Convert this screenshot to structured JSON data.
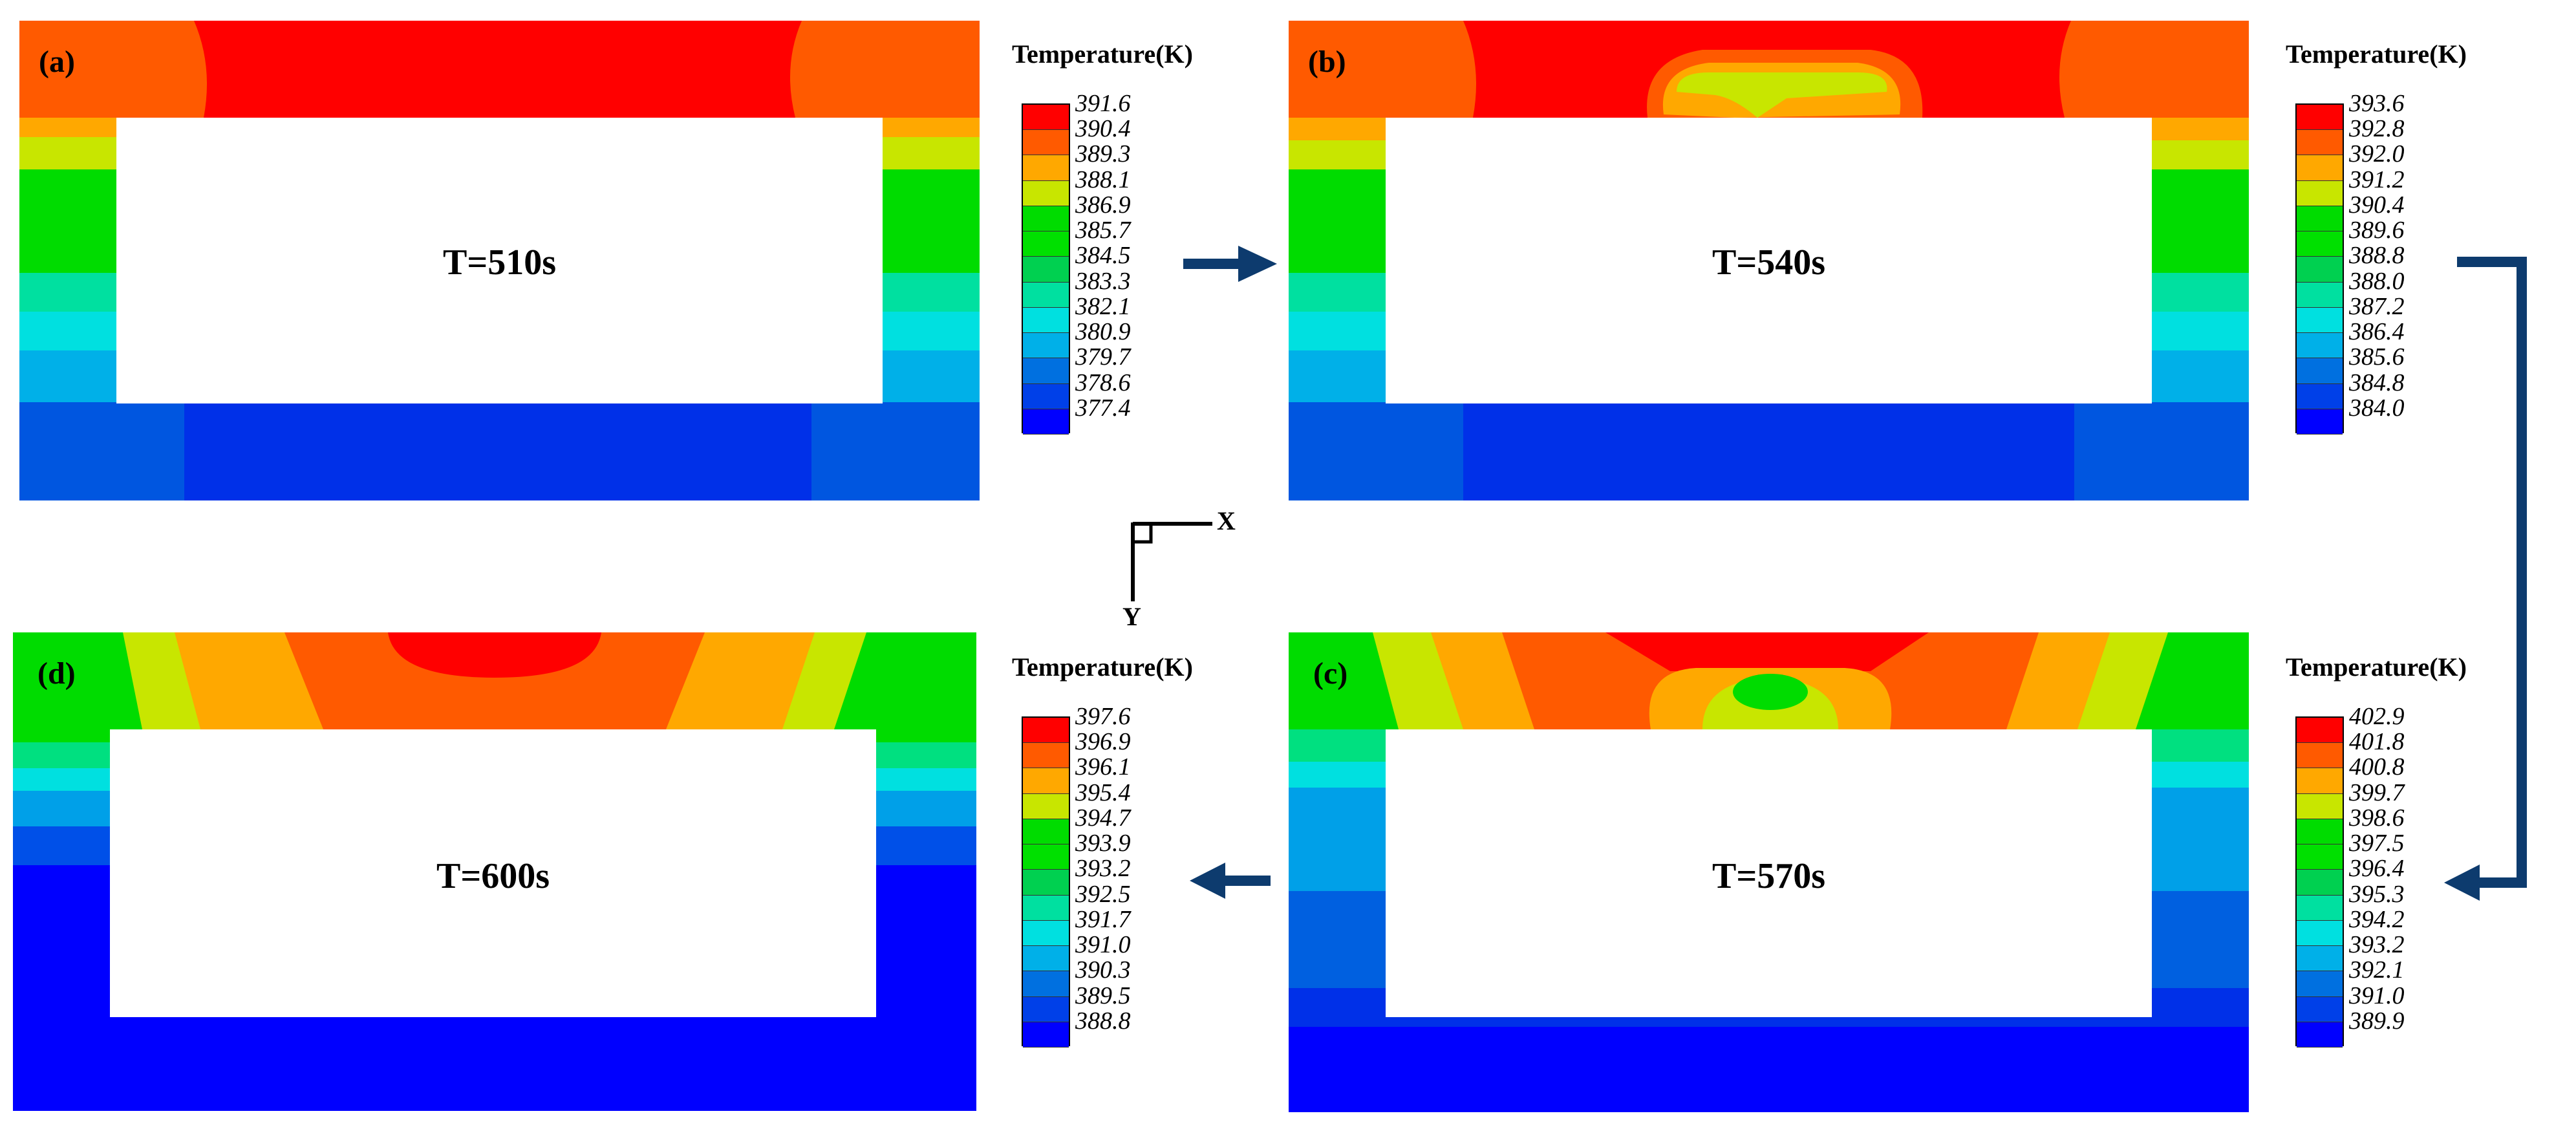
{
  "panels": [
    {
      "id": "a",
      "letter": "(a)",
      "time": "T=510s",
      "legend": {
        "title": "Temperature(K)",
        "values": [
          "391.6",
          "390.4",
          "389.3",
          "388.1",
          "386.9",
          "385.7",
          "384.5",
          "383.3",
          "382.1",
          "380.9",
          "379.7",
          "378.6",
          "377.4"
        ]
      }
    },
    {
      "id": "b",
      "letter": "(b)",
      "time": "T=540s",
      "legend": {
        "title": "Temperature(K)",
        "values": [
          "393.6",
          "392.8",
          "392.0",
          "391.2",
          "390.4",
          "389.6",
          "388.8",
          "388.0",
          "387.2",
          "386.4",
          "385.6",
          "384.8",
          "384.0"
        ]
      }
    },
    {
      "id": "c",
      "letter": "(c)",
      "time": "T=570s",
      "legend": {
        "title": "Temperature(K)",
        "values": [
          "402.9",
          "401.8",
          "400.8",
          "399.7",
          "398.6",
          "397.5",
          "396.4",
          "395.3",
          "394.2",
          "393.2",
          "392.1",
          "391.0",
          "389.9"
        ]
      }
    },
    {
      "id": "d",
      "letter": "(d)",
      "time": "T=600s",
      "legend": {
        "title": "Temperature(K)",
        "values": [
          "397.6",
          "396.9",
          "396.1",
          "395.4",
          "394.7",
          "393.9",
          "393.2",
          "392.5",
          "391.7",
          "391.0",
          "390.3",
          "389.5",
          "388.8"
        ]
      }
    }
  ],
  "axes": {
    "x_label": "X",
    "y_label": "Y"
  },
  "colormap": [
    "#ff0000",
    "#ff5a00",
    "#ffa800",
    "#c8e600",
    "#00dc00",
    "#00e000",
    "#00d050",
    "#00e0a0",
    "#00e0e0",
    "#00b0e8",
    "#0070e0",
    "#0040e8",
    "#0000ff"
  ],
  "arrow_color": "#0d3b6e"
}
